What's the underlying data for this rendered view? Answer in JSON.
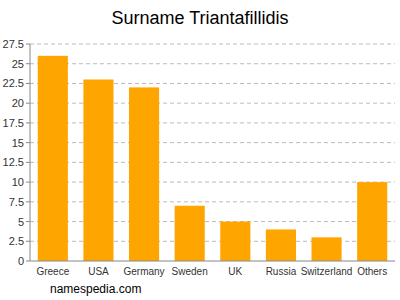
{
  "chart_data": {
    "type": "bar",
    "title": "Surname Triantafillidis",
    "categories": [
      "Greece",
      "USA",
      "Germany",
      "Sweden",
      "UK",
      "Russia",
      "Switzerland",
      "Others"
    ],
    "values": [
      26,
      23,
      22,
      7,
      5,
      4,
      3,
      10
    ],
    "color": "#ffa500",
    "ylim": [
      0,
      27.5
    ],
    "yticks": [
      0,
      2.5,
      5,
      7.5,
      10,
      12.5,
      15,
      17.5,
      20,
      22.5,
      25,
      27.5
    ],
    "grid": true,
    "annotations": [
      "namespedia.com"
    ]
  }
}
